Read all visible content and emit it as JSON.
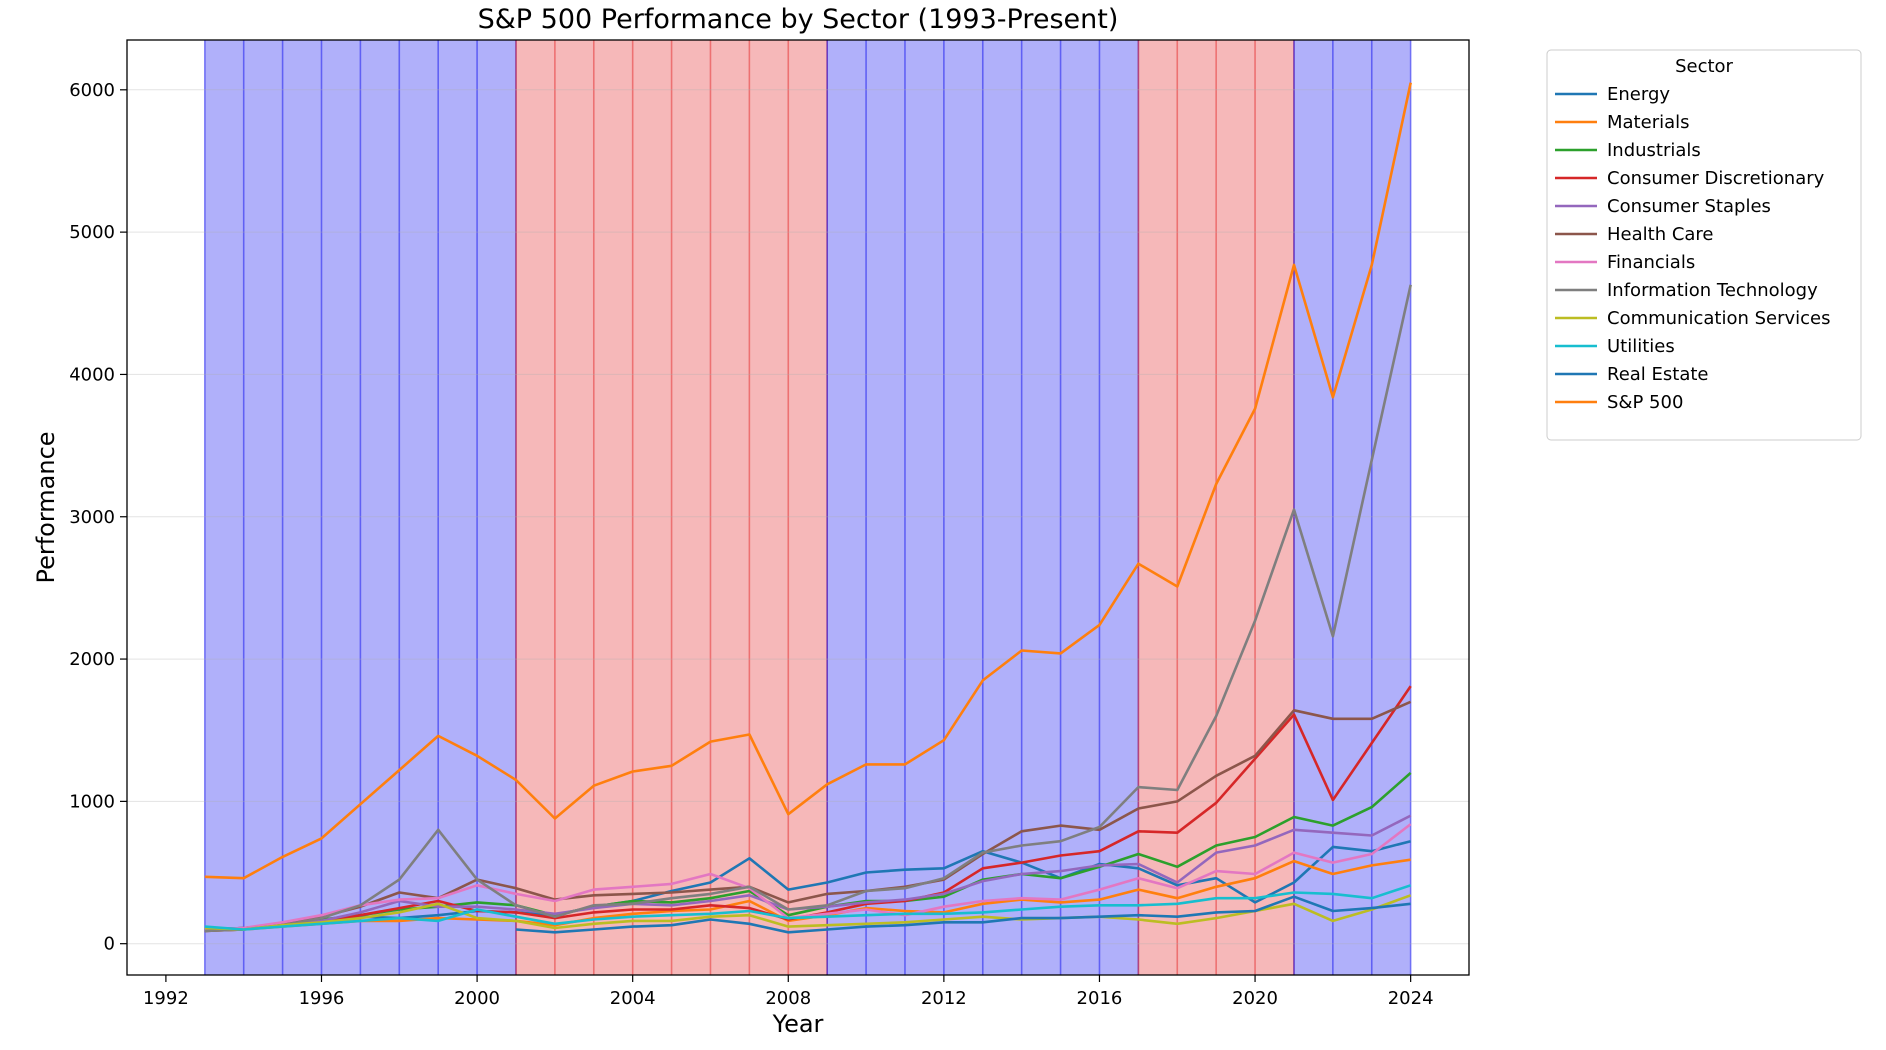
{
  "chart_data": {
    "type": "line",
    "title": "S&P 500 Performance by Sector (1993-Present)",
    "xlabel": "Year",
    "ylabel": "Performance",
    "xlim": [
      1991,
      2025.5
    ],
    "ylim": [
      -220,
      6350
    ],
    "xticks": [
      1992,
      1996,
      2000,
      2004,
      2008,
      2012,
      2016,
      2020,
      2024
    ],
    "yticks": [
      0,
      1000,
      2000,
      3000,
      4000,
      5000,
      6000
    ],
    "grid": true,
    "legend_title": "Sector",
    "legend_position": "outside-top-right",
    "background_spans": [
      {
        "start": 1993,
        "end": 2001,
        "color": "#0000ee",
        "line_color": "#0000ee"
      },
      {
        "start": 2001,
        "end": 2009,
        "color": "#e31a1c",
        "line_color": "#e31a1c"
      },
      {
        "start": 2009,
        "end": 2017,
        "color": "#0000ee",
        "line_color": "#0000ee"
      },
      {
        "start": 2017,
        "end": 2021,
        "color": "#e31a1c",
        "line_color": "#e31a1c"
      },
      {
        "start": 2021,
        "end": 2024,
        "color": "#0000ee",
        "line_color": "#0000ee"
      }
    ],
    "x": [
      1993,
      1994,
      1995,
      1996,
      1997,
      1998,
      1999,
      2000,
      2001,
      2002,
      2003,
      2004,
      2005,
      2006,
      2007,
      2008,
      2009,
      2010,
      2011,
      2012,
      2013,
      2014,
      2015,
      2016,
      2017,
      2018,
      2019,
      2020,
      2021,
      2022,
      2023,
      2024
    ],
    "series": [
      {
        "name": "Energy",
        "color": "#1f77b4",
        "values": [
          100,
          110,
          130,
          160,
          190,
          180,
          200,
          230,
          220,
          200,
          260,
          300,
          370,
          430,
          600,
          380,
          430,
          500,
          520,
          530,
          650,
          570,
          460,
          560,
          530,
          410,
          460,
          290,
          430,
          680,
          650,
          720
        ]
      },
      {
        "name": "Materials",
        "color": "#ff7f0e",
        "values": [
          90,
          100,
          120,
          140,
          160,
          160,
          180,
          170,
          160,
          130,
          180,
          210,
          230,
          240,
          300,
          160,
          200,
          250,
          230,
          220,
          280,
          310,
          290,
          310,
          380,
          320,
          400,
          460,
          580,
          490,
          550,
          590
        ]
      },
      {
        "name": "Industrials",
        "color": "#2ca02c",
        "values": [
          90,
          110,
          140,
          170,
          200,
          240,
          260,
          290,
          270,
          200,
          260,
          300,
          290,
          320,
          370,
          200,
          260,
          300,
          300,
          330,
          450,
          490,
          460,
          540,
          630,
          540,
          690,
          750,
          890,
          830,
          960,
          1200
        ]
      },
      {
        "name": "Consumer Discretionary",
        "color": "#d62728",
        "values": [
          100,
          110,
          130,
          150,
          200,
          250,
          300,
          230,
          220,
          180,
          220,
          240,
          240,
          270,
          250,
          170,
          220,
          280,
          300,
          360,
          530,
          570,
          620,
          650,
          790,
          780,
          990,
          1300,
          1610,
          1010,
          1410,
          1810
        ]
      },
      {
        "name": "Consumer Staples",
        "color": "#9467bd",
        "values": [
          100,
          110,
          130,
          160,
          220,
          300,
          260,
          260,
          240,
          210,
          250,
          280,
          270,
          300,
          340,
          240,
          260,
          290,
          310,
          350,
          440,
          490,
          510,
          550,
          560,
          430,
          640,
          690,
          800,
          780,
          760,
          900
        ]
      },
      {
        "name": "Health Care",
        "color": "#8c564b",
        "values": [
          90,
          100,
          140,
          190,
          260,
          360,
          320,
          450,
          390,
          310,
          340,
          350,
          360,
          380,
          400,
          290,
          350,
          370,
          400,
          450,
          630,
          790,
          830,
          800,
          950,
          1000,
          1180,
          1320,
          1640,
          1580,
          1580,
          1700
        ]
      },
      {
        "name": "Financials",
        "color": "#e377c2",
        "values": [
          100,
          110,
          150,
          200,
          270,
          310,
          320,
          410,
          350,
          300,
          380,
          400,
          420,
          490,
          390,
          180,
          210,
          240,
          200,
          260,
          300,
          320,
          310,
          380,
          460,
          390,
          510,
          490,
          640,
          570,
          630,
          840
        ]
      },
      {
        "name": "Information Technology",
        "color": "#7f7f7f",
        "values": [
          90,
          100,
          130,
          180,
          270,
          450,
          800,
          450,
          270,
          190,
          270,
          280,
          320,
          350,
          400,
          240,
          270,
          370,
          390,
          460,
          640,
          690,
          720,
          820,
          1100,
          1080,
          1600,
          2270,
          3050,
          2160,
          3400,
          4630
        ]
      },
      {
        "name": "Communication  Services",
        "color": "#bcbd22",
        "values": [
          110,
          100,
          130,
          150,
          180,
          220,
          280,
          180,
          160,
          110,
          140,
          160,
          160,
          190,
          200,
          120,
          130,
          140,
          150,
          170,
          190,
          170,
          180,
          190,
          170,
          140,
          180,
          230,
          280,
          160,
          240,
          340
        ]
      },
      {
        "name": "Utilities",
        "color": "#17becf",
        "values": [
          120,
          100,
          120,
          140,
          160,
          180,
          160,
          240,
          190,
          140,
          170,
          190,
          200,
          210,
          230,
          180,
          190,
          200,
          210,
          210,
          220,
          240,
          260,
          270,
          270,
          280,
          320,
          320,
          360,
          350,
          320,
          410
        ]
      },
      {
        "name": "Real Estate",
        "color": "#1f77b4",
        "values": [
          null,
          null,
          null,
          null,
          null,
          null,
          null,
          null,
          100,
          80,
          100,
          120,
          130,
          170,
          140,
          80,
          100,
          120,
          130,
          150,
          150,
          180,
          180,
          190,
          200,
          190,
          220,
          230,
          330,
          230,
          250,
          280
        ]
      },
      {
        "name": "S&P 500",
        "color": "#ff7f0e",
        "values": [
          470,
          460,
          610,
          740,
          980,
          1220,
          1460,
          1320,
          1150,
          880,
          1110,
          1210,
          1250,
          1420,
          1470,
          910,
          1120,
          1260,
          1260,
          1430,
          1850,
          2060,
          2040,
          2240,
          2670,
          2510,
          3230,
          3760,
          4770,
          3840,
          4770,
          6050
        ]
      }
    ]
  }
}
